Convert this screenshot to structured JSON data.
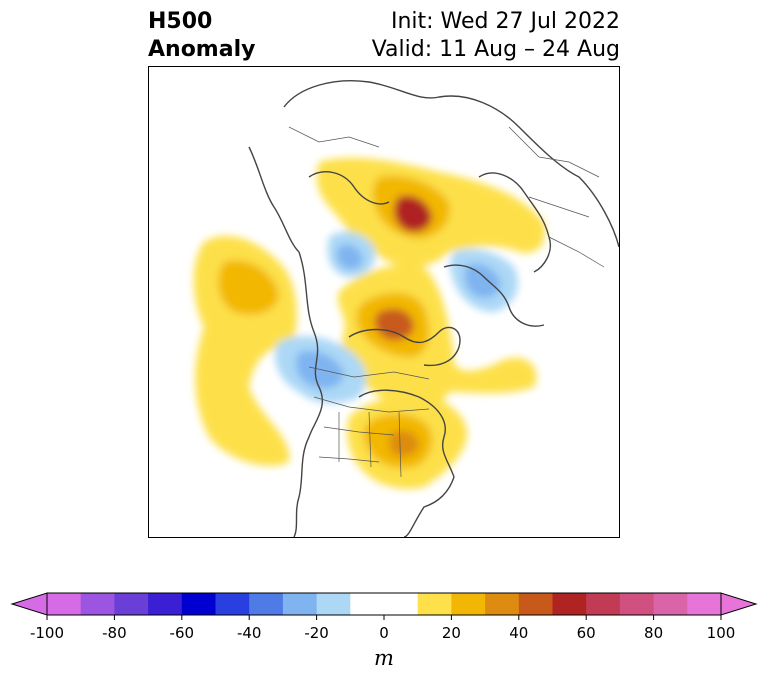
{
  "title": {
    "left_line1": "H500",
    "left_line2": "Anomaly",
    "right_line1": "Init: Wed 27 Jul 2022",
    "right_line2": "Valid: 11 Aug – 24 Aug"
  },
  "colorbar": {
    "unit": "m",
    "ticks": [
      "-100",
      "-80",
      "-60",
      "-40",
      "-20",
      "0",
      "20",
      "40",
      "60",
      "80",
      "100"
    ],
    "min": -100,
    "max": 100,
    "step": 10,
    "colors": [
      "#d66be6",
      "#9b55e0",
      "#6a3fd8",
      "#3a1fd4",
      "#0000d0",
      "#2a3fe0",
      "#4f7be6",
      "#7fb4f0",
      "#acd8f6",
      "#ffffff",
      "#ffffff",
      "#fde04a",
      "#f2b705",
      "#dd8c11",
      "#c75a1b",
      "#b02323",
      "#c23b55",
      "#d0507f",
      "#d964a8",
      "#e674d9"
    ],
    "extend": "both"
  },
  "map": {
    "projection": "north-polar-stereographic",
    "region": "North America / Arctic",
    "colors": {
      "coast": "#444444",
      "border": "#555555"
    }
  }
}
